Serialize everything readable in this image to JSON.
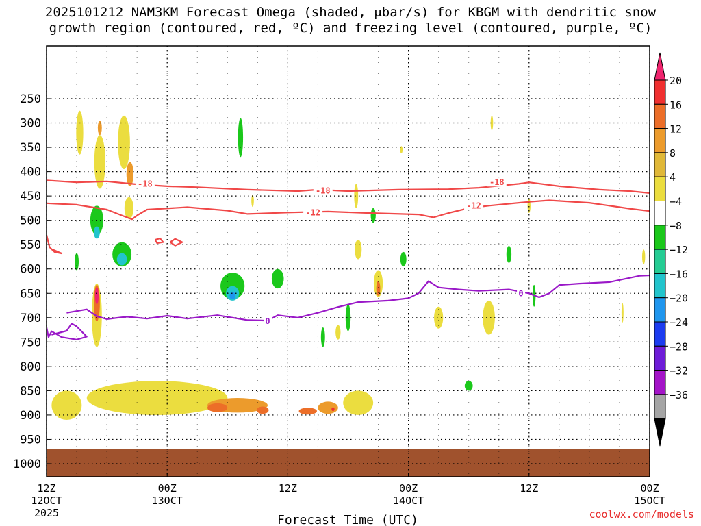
{
  "title_line1": "2025101212 NAM3KM Forecast Omega (shaded, μbar/s) for KBGM with dendritic snow",
  "title_line2": "growth region (contoured, red, ºC) and freezing level (contoured, purple, ºC)",
  "credit": "coolwx.com/models",
  "chart_data": {
    "type": "heatmap",
    "title": "2025101212 NAM3KM Forecast Omega (shaded, μbar/s) for KBGM with dendritic snow growth region (contoured, red, ºC) and freezing level (contoured, purple, ºC)",
    "xlabel": "Forecast Time (UTC)",
    "ylabel": "",
    "y_axis": "pressure (hPa), inverted",
    "xlim": [
      0,
      60
    ],
    "ylim": [
      1040,
      200
    ],
    "grid": true,
    "x_ticks": [
      {
        "hour": 0,
        "label1": "12Z",
        "label2": "12OCT",
        "label3": "2025"
      },
      {
        "hour": 12,
        "label1": "00Z",
        "label2": "13OCT",
        "label3": ""
      },
      {
        "hour": 24,
        "label1": "12Z",
        "label2": "",
        "label3": ""
      },
      {
        "hour": 36,
        "label1": "00Z",
        "label2": "14OCT",
        "label3": ""
      },
      {
        "hour": 48,
        "label1": "12Z",
        "label2": "",
        "label3": ""
      },
      {
        "hour": 60,
        "label1": "00Z",
        "label2": "15OCT",
        "label3": ""
      }
    ],
    "y_ticks": [
      250,
      300,
      350,
      400,
      450,
      500,
      550,
      600,
      650,
      700,
      750,
      800,
      850,
      900,
      950,
      1000
    ],
    "ground_level_hpa": 970,
    "colorbar": {
      "ticks": [
        "20",
        "16",
        "12",
        "8",
        "4",
        "−4",
        "−8",
        "−12",
        "−16",
        "−20",
        "−24",
        "−28",
        "−32",
        "−36"
      ],
      "colors_top_to_bottom": [
        "#f0246e",
        "#f03030",
        "#ec6e28",
        "#ec9b2c",
        "#e0b838",
        "#ebdd3f",
        "#ffffff",
        "#1bc81b",
        "#25cc93",
        "#22c4cc",
        "#1f96ee",
        "#1c3cf0",
        "#6e1cd8",
        "#a414c8",
        "#a5a5a5",
        "#000000"
      ]
    },
    "omega_regions": [
      {
        "hour": 3.3,
        "p": 320,
        "w": 0.7,
        "h": 90,
        "value": 4
      },
      {
        "hour": 5.3,
        "p": 380,
        "w": 1.1,
        "h": 110,
        "value": 4
      },
      {
        "hour": 5.3,
        "p": 310,
        "w": 0.4,
        "h": 30,
        "value": 8
      },
      {
        "hour": 7.7,
        "p": 340,
        "w": 1.2,
        "h": 110,
        "value": 4
      },
      {
        "hour": 8.3,
        "p": 405,
        "w": 0.7,
        "h": 50,
        "value": 8
      },
      {
        "hour": 8.2,
        "p": 475,
        "w": 0.9,
        "h": 45,
        "value": 4
      },
      {
        "hour": 5.0,
        "p": 500,
        "w": 1.3,
        "h": 60,
        "value": -4
      },
      {
        "hour": 5.0,
        "p": 525,
        "w": 0.6,
        "h": 25,
        "value": -12
      },
      {
        "hour": 7.5,
        "p": 570,
        "w": 1.9,
        "h": 50,
        "value": -4
      },
      {
        "hour": 7.5,
        "p": 580,
        "w": 1.0,
        "h": 25,
        "value": -12
      },
      {
        "hour": 3.0,
        "p": 585,
        "w": 0.4,
        "h": 35,
        "value": -4
      },
      {
        "hour": 5.0,
        "p": 695,
        "w": 1.0,
        "h": 130,
        "value": 4
      },
      {
        "hour": 5.0,
        "p": 670,
        "w": 0.6,
        "h": 75,
        "value": 12
      },
      {
        "hour": 5.0,
        "p": 655,
        "w": 0.35,
        "h": 35,
        "value": 20
      },
      {
        "hour": 18.5,
        "p": 635,
        "w": 2.4,
        "h": 55,
        "value": -4
      },
      {
        "hour": 18.5,
        "p": 650,
        "w": 1.3,
        "h": 30,
        "value": -12
      },
      {
        "hour": 18.5,
        "p": 655,
        "w": 0.6,
        "h": 15,
        "value": -16
      },
      {
        "hour": 19.3,
        "p": 330,
        "w": 0.5,
        "h": 80,
        "value": -4
      },
      {
        "hour": 23.0,
        "p": 620,
        "w": 1.2,
        "h": 40,
        "value": -4
      },
      {
        "hour": 31.0,
        "p": 560,
        "w": 0.7,
        "h": 40,
        "value": 4
      },
      {
        "hour": 30.8,
        "p": 450,
        "w": 0.4,
        "h": 50,
        "value": 4
      },
      {
        "hour": 33.0,
        "p": 630,
        "w": 0.9,
        "h": 55,
        "value": 4
      },
      {
        "hour": 33.0,
        "p": 640,
        "w": 0.4,
        "h": 30,
        "value": 12
      },
      {
        "hour": 32.5,
        "p": 490,
        "w": 0.5,
        "h": 30,
        "value": -4
      },
      {
        "hour": 35.5,
        "p": 580,
        "w": 0.6,
        "h": 30,
        "value": -4
      },
      {
        "hour": 30.0,
        "p": 700,
        "w": 0.5,
        "h": 55,
        "value": -4
      },
      {
        "hour": 29.0,
        "p": 730,
        "w": 0.5,
        "h": 30,
        "value": 4
      },
      {
        "hour": 27.5,
        "p": 740,
        "w": 0.4,
        "h": 40,
        "value": -4
      },
      {
        "hour": 44.0,
        "p": 700,
        "w": 1.2,
        "h": 70,
        "value": 4
      },
      {
        "hour": 46.0,
        "p": 570,
        "w": 0.5,
        "h": 35,
        "value": -4
      },
      {
        "hour": 48.5,
        "p": 655,
        "w": 0.3,
        "h": 45,
        "value": -4
      },
      {
        "hour": 39.0,
        "p": 700,
        "w": 0.9,
        "h": 45,
        "value": 4
      },
      {
        "hour": 42.0,
        "p": 840,
        "w": 0.8,
        "h": 20,
        "value": -4
      },
      {
        "hour": 48.0,
        "p": 470,
        "w": 0.3,
        "h": 30,
        "value": 4
      },
      {
        "hour": 59.4,
        "p": 575,
        "w": 0.3,
        "h": 30,
        "value": 4
      },
      {
        "hour": 57.3,
        "p": 690,
        "w": 0.2,
        "h": 40,
        "value": 4
      },
      {
        "hour": 44.3,
        "p": 300,
        "w": 0.25,
        "h": 30,
        "value": 4
      },
      {
        "hour": 35.3,
        "p": 355,
        "w": 0.25,
        "h": 15,
        "value": 4
      },
      {
        "hour": 20.5,
        "p": 460,
        "w": 0.25,
        "h": 25,
        "value": 4
      },
      {
        "hour": 11.0,
        "p": 865,
        "w": 14.0,
        "h": 70,
        "value": 4
      },
      {
        "hour": 2.0,
        "p": 880,
        "w": 3.0,
        "h": 60,
        "value": 4
      },
      {
        "hour": 31.0,
        "p": 875,
        "w": 3.0,
        "h": 50,
        "value": 4
      },
      {
        "hour": 19.0,
        "p": 880,
        "w": 6.0,
        "h": 30,
        "value": 8
      },
      {
        "hour": 28.0,
        "p": 885,
        "w": 2.0,
        "h": 25,
        "value": 8
      },
      {
        "hour": 17.0,
        "p": 885,
        "w": 2.0,
        "h": 18,
        "value": 12
      },
      {
        "hour": 21.5,
        "p": 890,
        "w": 1.2,
        "h": 15,
        "value": 12
      },
      {
        "hour": 26.0,
        "p": 892,
        "w": 1.8,
        "h": 14,
        "value": 12
      },
      {
        "hour": 28.5,
        "p": 888,
        "w": 0.3,
        "h": 8,
        "value": 16
      }
    ],
    "contours": [
      {
        "level": "-18",
        "color": "#f04848",
        "points": [
          [
            0,
            418
          ],
          [
            3,
            422
          ],
          [
            6,
            420
          ],
          [
            9,
            426
          ],
          [
            12,
            430
          ],
          [
            15,
            432
          ],
          [
            20,
            437
          ],
          [
            25,
            440
          ],
          [
            27,
            437
          ],
          [
            30,
            440
          ],
          [
            35,
            437
          ],
          [
            40,
            436
          ],
          [
            43,
            433
          ],
          [
            47,
            425
          ],
          [
            48,
            422
          ],
          [
            51,
            430
          ],
          [
            55,
            437
          ],
          [
            58,
            440
          ],
          [
            60,
            444
          ]
        ]
      },
      {
        "level": "-12",
        "color": "#f04848",
        "points": [
          [
            0,
            465
          ],
          [
            3,
            468
          ],
          [
            6,
            478
          ],
          [
            7.5,
            490
          ],
          [
            8.5,
            498
          ],
          [
            9,
            490
          ],
          [
            10,
            478
          ],
          [
            14,
            473
          ],
          [
            18,
            480
          ],
          [
            20,
            487
          ],
          [
            24,
            484
          ],
          [
            28,
            482
          ],
          [
            32,
            485
          ],
          [
            37,
            488
          ],
          [
            38.5,
            494
          ],
          [
            40,
            485
          ],
          [
            42,
            475
          ],
          [
            44,
            470
          ],
          [
            48,
            462
          ],
          [
            50,
            459
          ],
          [
            54,
            464
          ],
          [
            58,
            476
          ],
          [
            60,
            481
          ]
        ]
      },
      {
        "level": "-12",
        "color": "#f04848",
        "points": [
          [
            0,
            530
          ],
          [
            0.3,
            555
          ],
          [
            0.8,
            565
          ],
          [
            1.5,
            568
          ],
          [
            0.6,
            560
          ]
        ]
      },
      {
        "level": "-12",
        "color": "#f04848",
        "points": [
          [
            12.3,
            545
          ],
          [
            12.8,
            538
          ],
          [
            13.5,
            545
          ],
          [
            12.8,
            552
          ],
          [
            12.3,
            545
          ]
        ]
      },
      {
        "level": "-12",
        "color": "#f04848",
        "points": [
          [
            10.8,
            540
          ],
          [
            11.3,
            537
          ],
          [
            11.6,
            545
          ],
          [
            11.0,
            547
          ],
          [
            10.8,
            540
          ]
        ]
      },
      {
        "level": "0",
        "color": "#9a18c8",
        "points": [
          [
            2,
            690
          ],
          [
            4,
            683
          ],
          [
            5,
            697
          ],
          [
            6,
            703
          ],
          [
            8,
            698
          ],
          [
            10,
            702
          ],
          [
            12,
            696
          ],
          [
            14,
            702
          ],
          [
            17,
            695
          ],
          [
            20,
            705
          ],
          [
            22,
            706
          ],
          [
            23,
            695
          ],
          [
            25,
            700
          ],
          [
            27,
            690
          ],
          [
            29,
            678
          ],
          [
            31,
            668
          ],
          [
            34,
            665
          ],
          [
            36,
            660
          ],
          [
            37,
            650
          ],
          [
            38,
            625
          ],
          [
            39,
            638
          ],
          [
            41,
            642
          ],
          [
            43,
            645
          ],
          [
            46,
            642
          ],
          [
            48,
            650
          ],
          [
            49,
            658
          ],
          [
            50,
            650
          ],
          [
            51,
            633
          ],
          [
            53,
            630
          ],
          [
            56,
            627
          ],
          [
            59,
            614
          ],
          [
            60,
            613
          ]
        ]
      },
      {
        "level": "0",
        "color": "#9a18c8",
        "points": [
          [
            0,
            720
          ],
          [
            0.2,
            740
          ],
          [
            0.5,
            728
          ],
          [
            1.5,
            740
          ],
          [
            3,
            745
          ],
          [
            4,
            739
          ],
          [
            3,
            718
          ],
          [
            2.5,
            712
          ],
          [
            2,
            727
          ],
          [
            0.5,
            735
          ]
        ]
      }
    ]
  }
}
